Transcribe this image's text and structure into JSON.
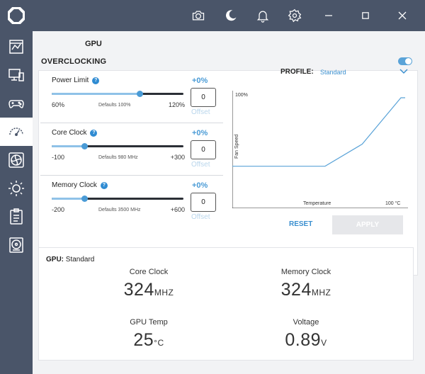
{
  "colors": {
    "rail": "#4a5569",
    "accent": "#3a8fcf",
    "content_bg": "#f2f3f5"
  },
  "rail": {
    "items": [
      {
        "icon": "dashboard-icon"
      },
      {
        "icon": "monitor-icon"
      },
      {
        "icon": "gamepad-icon"
      },
      {
        "icon": "gauge-icon",
        "active": true
      },
      {
        "icon": "fan-icon"
      },
      {
        "icon": "sun-icon"
      },
      {
        "icon": "clipboard-icon"
      },
      {
        "icon": "disc-icon"
      }
    ]
  },
  "topbar": {
    "icons": [
      "camera-icon",
      "moon-icon",
      "bell-icon",
      "gear-icon",
      "minimize-icon",
      "maximize-icon",
      "close-icon"
    ]
  },
  "page": {
    "title": "GPU",
    "section_title": "OVERCLOCKING",
    "overclocking_enabled": true
  },
  "sliders": [
    {
      "label": "Power Limit",
      "delta": "+0%",
      "min": "60%",
      "max": "120%",
      "defaults": "Defaults  100%",
      "offset_value": "0",
      "offset_label": "Offset",
      "level": 0.67
    },
    {
      "label": "Core Clock",
      "delta": "+0%",
      "min": "-100",
      "max": "+300",
      "defaults": "Defaults  980 MHz",
      "offset_value": "0",
      "offset_label": "Offset",
      "level": 0.25
    },
    {
      "label": "Memory Clock",
      "delta": "+0%",
      "min": "-200",
      "max": "+600",
      "defaults": "Defaults  3500 MHz",
      "offset_value": "0",
      "offset_label": "Offset",
      "level": 0.25
    }
  ],
  "profile": {
    "label": "PROFILE:",
    "value": "Standard"
  },
  "chart_data": {
    "type": "line",
    "xlabel": "Temperature",
    "ylabel": "Fan Speed",
    "y_max_label": "100%",
    "x_max_label": "100 °C",
    "series": [
      {
        "x": [
          0,
          55,
          77,
          100
        ],
        "y": [
          38,
          38,
          58,
          100
        ]
      }
    ],
    "xlim": [
      0,
      100
    ],
    "ylim": [
      0,
      100
    ]
  },
  "buttons": {
    "reset": "RESET",
    "apply": "APPLY"
  },
  "stats": {
    "header_label": "GPU:",
    "header_value": " Standard",
    "core_clock": {
      "label": "Core Clock",
      "value": "324",
      "unit": "MHZ"
    },
    "memory_clock": {
      "label": "Memory Clock",
      "value": "324",
      "unit": "MHZ"
    },
    "gpu_temp": {
      "label": "GPU Temp",
      "value": "25",
      "unit": "°C"
    },
    "voltage": {
      "label": "Voltage",
      "value": "0.89",
      "unit": "V"
    }
  }
}
